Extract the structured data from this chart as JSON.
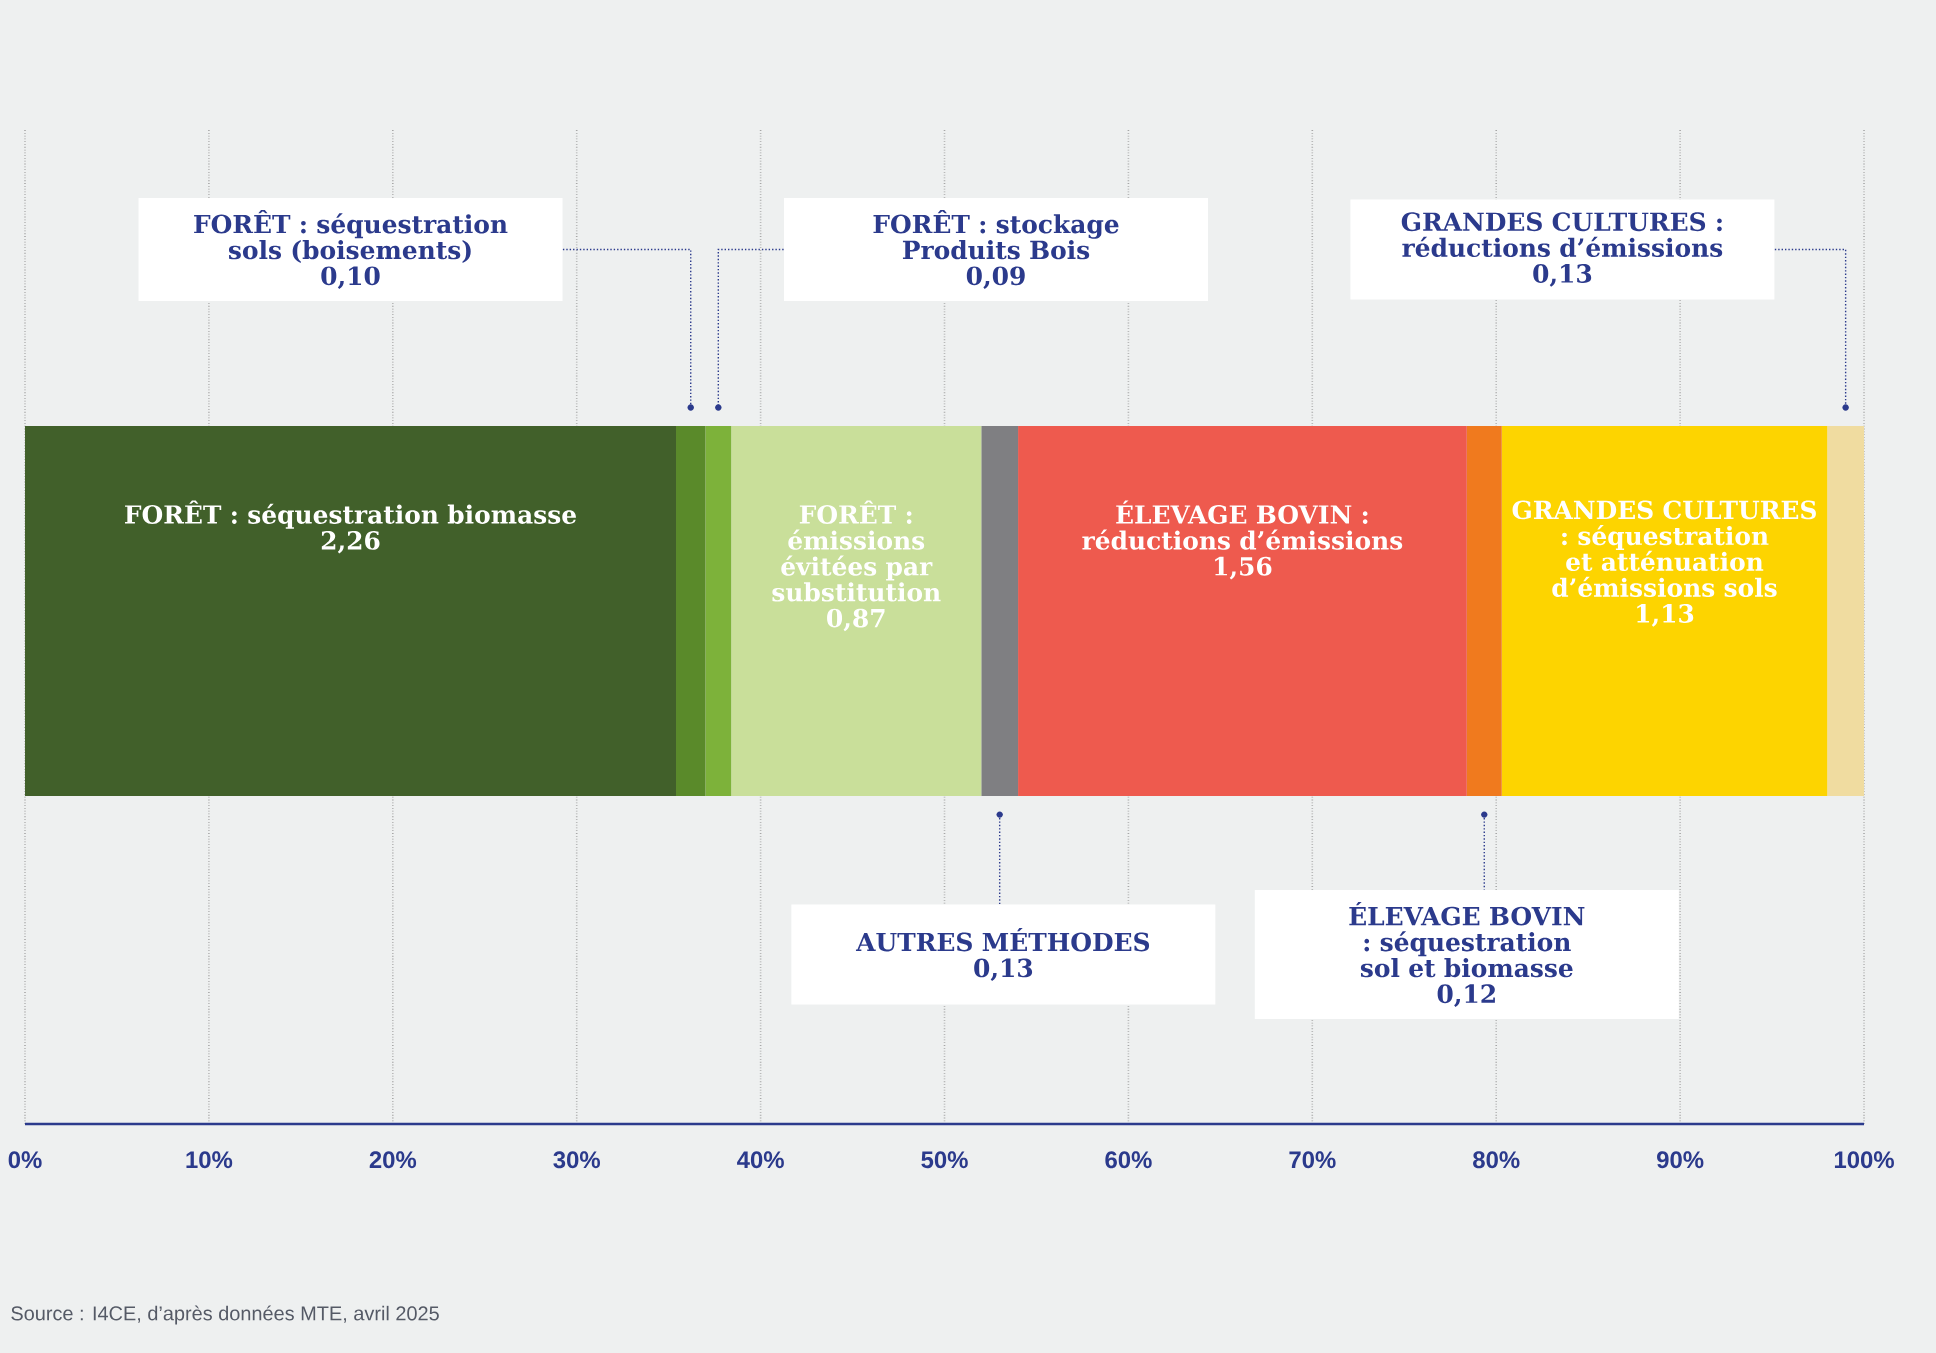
{
  "chart_data": {
    "type": "bar",
    "orientation": "horizontal",
    "stacked": true,
    "categories": [
      null
    ],
    "series": [
      {
        "name": "FORÊT : séquestration biomasse",
        "color": "#41602a",
        "values": [
          35.4
        ]
      },
      {
        "color": "#5a8a2a",
        "values": [
          1.6
        ]
      },
      {
        "color": "#7db23a",
        "values": [
          1.4
        ]
      },
      {
        "name": "FORÊT : émissions évitées par substitution",
        "color": "#c9df9a",
        "values": [
          13.6
        ]
      },
      {
        "color": "#7f7f82",
        "values": [
          2.0
        ]
      },
      {
        "name": "ÉLEVAGE BOVIN : réductions d’émissions",
        "color": "#ee5a4e",
        "values": [
          24.4
        ]
      },
      {
        "color": "#f07a1e",
        "values": [
          1.9
        ]
      },
      {
        "name": "GRANDES CULTURES : séquestration et atténuation d’émissions sols",
        "color": "#fdd400",
        "values": [
          17.7
        ]
      },
      {
        "color": "#f0dca0",
        "values": [
          2.0
        ]
      }
    ],
    "xlim": [
      0,
      100
    ],
    "xticks": [
      {
        "value": 0,
        "label": "0%"
      },
      {
        "value": 10,
        "label": "10%"
      },
      {
        "value": 20,
        "label": "20%"
      },
      {
        "value": 30,
        "label": "30%"
      },
      {
        "value": 40,
        "label": "40%"
      },
      {
        "value": 50,
        "label": "50%"
      },
      {
        "value": 60,
        "label": "60%"
      },
      {
        "value": 70,
        "label": "70%"
      },
      {
        "value": 80,
        "label": "80%"
      },
      {
        "value": 90,
        "label": "90%"
      },
      {
        "value": 100,
        "label": "100%"
      }
    ],
    "grid": "x",
    "legend": false,
    "annotations": [
      "Source : I4CE, d’après données MTE, avril 2025",
      "2,26",
      "FORÊT : séquestration sols (boisements)",
      "0,10",
      "FORÊT : stockage Produits Bois",
      "0,09",
      "0,87",
      "AUTRES MÉTHODES",
      "0,13",
      "1,56",
      "ÉLEVAGE BOVIN : séquestration sol et biomasse",
      "0,12",
      "1,13",
      "GRANDES CULTURES : réductions d’émissions",
      "0,13"
    ]
  }
}
